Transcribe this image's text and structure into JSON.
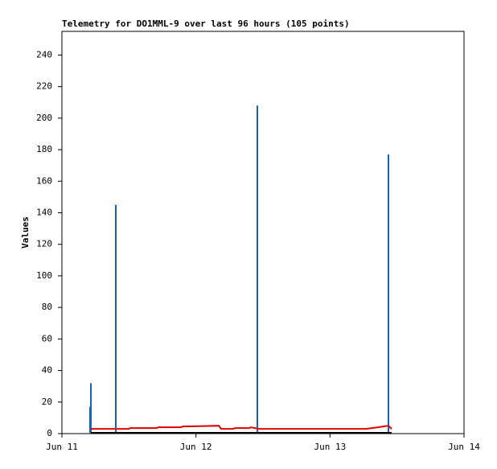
{
  "chart_data": {
    "type": "line",
    "title": "Telemetry for DO1MML-9 over last 96 hours (105 points)",
    "y_label": "Values",
    "xlim": [
      0,
      3
    ],
    "ylim": [
      0,
      255
    ],
    "xticks": [
      {
        "value": 0,
        "label": "Jun 11"
      },
      {
        "value": 1,
        "label": "Jun 12"
      },
      {
        "value": 2,
        "label": "Jun 13"
      },
      {
        "value": 3,
        "label": "Jun 14"
      }
    ],
    "yticks": [
      0,
      20,
      40,
      60,
      80,
      100,
      120,
      140,
      160,
      180,
      200,
      220,
      240
    ],
    "grid": false,
    "series": [
      {
        "type": "impulse",
        "color": "#1565c0",
        "x": [
          0.21,
          0.216,
          0.402,
          1.458,
          2.436
        ],
        "values": [
          17,
          32,
          145,
          208,
          177
        ]
      },
      {
        "type": "line",
        "color": "#000000",
        "x": [
          0.216,
          2.46
        ],
        "values": [
          0.5,
          0.5
        ]
      },
      {
        "type": "line",
        "color": "#dd0000",
        "x": [
          0.216,
          0.498,
          0.51,
          0.708,
          0.72,
          0.888,
          0.9,
          1.17,
          1.188,
          1.278,
          1.29,
          1.398,
          1.41,
          1.47,
          2.268,
          2.358,
          2.436,
          2.46
        ],
        "values": [
          3,
          3,
          3.5,
          3.5,
          4,
          4,
          4.5,
          5,
          3,
          3,
          3.5,
          3.5,
          4,
          3,
          3,
          4,
          5,
          3
        ]
      }
    ]
  }
}
